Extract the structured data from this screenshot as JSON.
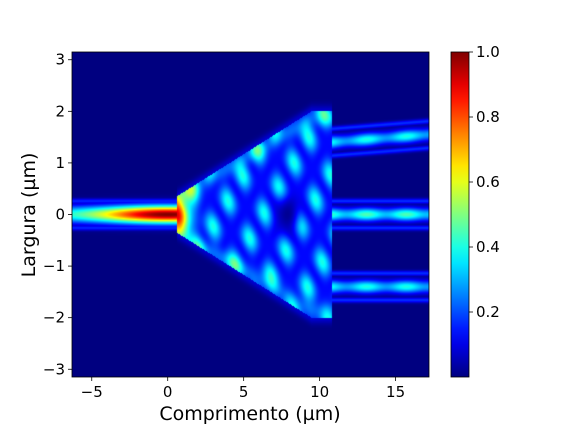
{
  "chart_data": {
    "type": "heatmap",
    "title": "",
    "xlabel": "Comprimento (µm)",
    "ylabel": "Largura (µm)",
    "xlim": [
      -6.3,
      17.2
    ],
    "ylim": [
      -3.15,
      3.15
    ],
    "xticks": [
      -5,
      0,
      5,
      10,
      15
    ],
    "yticks": [
      -3,
      -2,
      -1,
      0,
      1,
      2,
      3
    ],
    "colorbar": {
      "colormap": "jet",
      "range": [
        0.0,
        1.0
      ],
      "ticks": [
        0.2,
        0.4,
        0.6,
        0.8,
        1.0
      ],
      "tick_labels": [
        "0.2",
        "0.4",
        "0.6",
        "0.8",
        "1.0"
      ]
    },
    "field": {
      "input_waveguide": {
        "x_range": [
          -6.3,
          0.6
        ],
        "y_center": 0,
        "peak_x": 0,
        "peak_value": 1.0
      },
      "taper": {
        "x_range": [
          0.6,
          10.8
        ],
        "y_half_width_start": 0.35,
        "y_half_width_end": 2.0
      },
      "output_waveguides": [
        {
          "y_start": 1.4,
          "y_end": 1.55,
          "x_range": [
            10.8,
            17.2
          ],
          "value": 0.4
        },
        {
          "y_start": 0.0,
          "y_end": 0.0,
          "x_range": [
            10.8,
            17.2
          ],
          "value": 0.45
        },
        {
          "y_start": -1.4,
          "y_end": -1.4,
          "x_range": [
            10.8,
            17.2
          ],
          "value": 0.4
        }
      ],
      "background_value": 0.0
    }
  }
}
